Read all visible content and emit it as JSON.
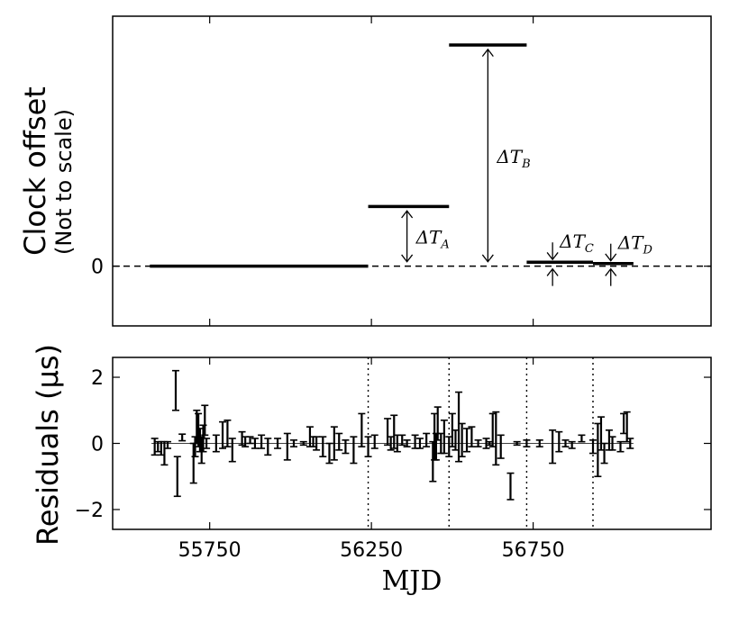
{
  "chart_data": [
    {
      "type": "step",
      "ylabel": "Clock offset",
      "ylabel_sub": "(Not to scale)",
      "ytick": "0",
      "segments": [
        {
          "x0": 55565,
          "x1": 56240,
          "level": 0
        },
        {
          "x0": 56240,
          "x1": 56490,
          "level": 0.27
        },
        {
          "x0": 56490,
          "x1": 56730,
          "level": 1.0
        },
        {
          "x0": 56730,
          "x1": 56935,
          "level": 0.018
        },
        {
          "x0": 56935,
          "x1": 57060,
          "level": 0.012
        }
      ],
      "ylim": [
        -0.27,
        1.13
      ],
      "xlim": [
        55450,
        57300
      ],
      "annotations": [
        {
          "label": "ΔT",
          "subscript": "A",
          "x": 56360,
          "from": 0.02,
          "to": 0.25
        },
        {
          "label": "ΔT",
          "subscript": "B",
          "x": 56610,
          "from": 0.02,
          "to": 0.98
        },
        {
          "label": "ΔT",
          "subscript": "C",
          "x": 56810,
          "from": 0.018,
          "to": 0
        },
        {
          "label": "ΔT",
          "subscript": "D",
          "x": 56990,
          "from": 0.012,
          "to": 0
        }
      ]
    },
    {
      "type": "errorbar",
      "ylabel": "Residuals (μs)",
      "xlabel": "MJD",
      "xticks": [
        55750,
        56250,
        56750
      ],
      "xtick_labels": [
        "55750",
        "56250",
        "56750"
      ],
      "yticks": [
        -2,
        0,
        2
      ],
      "ytick_labels": [
        "−2",
        "0",
        "2"
      ],
      "xlim": [
        55450,
        57300
      ],
      "ylim": [
        -2.6,
        2.6
      ],
      "vlines": [
        56240,
        56490,
        56730,
        56935
      ],
      "points": [
        {
          "x": 55580,
          "y": -0.1,
          "err": 0.25
        },
        {
          "x": 55590,
          "y": -0.1,
          "err": 0.15
        },
        {
          "x": 55600,
          "y": -0.15,
          "err": 0.2
        },
        {
          "x": 55610,
          "y": -0.3,
          "err": 0.35
        },
        {
          "x": 55620,
          "y": -0.05,
          "err": 0.1
        },
        {
          "x": 55645,
          "y": 1.6,
          "err": 0.6
        },
        {
          "x": 55650,
          "y": -1.0,
          "err": 0.6
        },
        {
          "x": 55665,
          "y": 0.18,
          "err": 0.1
        },
        {
          "x": 55700,
          "y": -0.6,
          "err": 0.6
        },
        {
          "x": 55705,
          "y": -0.1,
          "err": 0.3
        },
        {
          "x": 55710,
          "y": 0.5,
          "err": 0.5
        },
        {
          "x": 55715,
          "y": 0.4,
          "err": 0.5
        },
        {
          "x": 55720,
          "y": 0.1,
          "err": 0.35
        },
        {
          "x": 55725,
          "y": -0.2,
          "err": 0.4
        },
        {
          "x": 55730,
          "y": 0.15,
          "err": 0.4
        },
        {
          "x": 55735,
          "y": 0.7,
          "err": 0.45
        },
        {
          "x": 55740,
          "y": 0.0,
          "err": 0.15
        },
        {
          "x": 55770,
          "y": 0.0,
          "err": 0.25
        },
        {
          "x": 55790,
          "y": 0.25,
          "err": 0.4
        },
        {
          "x": 55805,
          "y": 0.3,
          "err": 0.4
        },
        {
          "x": 55820,
          "y": -0.2,
          "err": 0.35
        },
        {
          "x": 55850,
          "y": 0.15,
          "err": 0.2
        },
        {
          "x": 55860,
          "y": 0.05,
          "err": 0.15
        },
        {
          "x": 55875,
          "y": 0.1,
          "err": 0.1
        },
        {
          "x": 55890,
          "y": 0.0,
          "err": 0.15
        },
        {
          "x": 55910,
          "y": 0.05,
          "err": 0.2
        },
        {
          "x": 55930,
          "y": -0.1,
          "err": 0.25
        },
        {
          "x": 55960,
          "y": 0.0,
          "err": 0.15
        },
        {
          "x": 55990,
          "y": -0.1,
          "err": 0.4
        },
        {
          "x": 56010,
          "y": 0.0,
          "err": 0.1
        },
        {
          "x": 56040,
          "y": 0.0,
          "err": 0.05
        },
        {
          "x": 56060,
          "y": 0.2,
          "err": 0.3
        },
        {
          "x": 56070,
          "y": 0.05,
          "err": 0.15
        },
        {
          "x": 56080,
          "y": 0.0,
          "err": 0.2
        },
        {
          "x": 56100,
          "y": -0.1,
          "err": 0.3
        },
        {
          "x": 56120,
          "y": -0.3,
          "err": 0.3
        },
        {
          "x": 56135,
          "y": 0.0,
          "err": 0.5
        },
        {
          "x": 56150,
          "y": 0.05,
          "err": 0.25
        },
        {
          "x": 56170,
          "y": -0.1,
          "err": 0.2
        },
        {
          "x": 56195,
          "y": -0.2,
          "err": 0.4
        },
        {
          "x": 56220,
          "y": 0.4,
          "err": 0.5
        },
        {
          "x": 56240,
          "y": -0.1,
          "err": 0.3
        },
        {
          "x": 56260,
          "y": 0.05,
          "err": 0.2
        },
        {
          "x": 56300,
          "y": 0.35,
          "err": 0.4
        },
        {
          "x": 56310,
          "y": 0.0,
          "err": 0.2
        },
        {
          "x": 56320,
          "y": 0.35,
          "err": 0.5
        },
        {
          "x": 56330,
          "y": 0.0,
          "err": 0.25
        },
        {
          "x": 56345,
          "y": 0.1,
          "err": 0.15
        },
        {
          "x": 56360,
          "y": 0.0,
          "err": 0.1
        },
        {
          "x": 56385,
          "y": 0.05,
          "err": 0.2
        },
        {
          "x": 56400,
          "y": 0.0,
          "err": 0.15
        },
        {
          "x": 56420,
          "y": 0.1,
          "err": 0.2
        },
        {
          "x": 56440,
          "y": -0.55,
          "err": 0.6
        },
        {
          "x": 56445,
          "y": 0.2,
          "err": 0.7
        },
        {
          "x": 56450,
          "y": -0.1,
          "err": 0.4
        },
        {
          "x": 56455,
          "y": 0.6,
          "err": 0.5
        },
        {
          "x": 56465,
          "y": 0.0,
          "err": 0.3
        },
        {
          "x": 56475,
          "y": 0.2,
          "err": 0.5
        },
        {
          "x": 56490,
          "y": -0.1,
          "err": 0.3
        },
        {
          "x": 56500,
          "y": 0.4,
          "err": 0.5
        },
        {
          "x": 56510,
          "y": 0.1,
          "err": 0.3
        },
        {
          "x": 56520,
          "y": 0.5,
          "err": 1.05
        },
        {
          "x": 56530,
          "y": 0.1,
          "err": 0.5
        },
        {
          "x": 56545,
          "y": 0.1,
          "err": 0.35
        },
        {
          "x": 56560,
          "y": 0.2,
          "err": 0.3
        },
        {
          "x": 56580,
          "y": 0.0,
          "err": 0.1
        },
        {
          "x": 56605,
          "y": 0.0,
          "err": 0.15
        },
        {
          "x": 56615,
          "y": 0.0,
          "err": 0.05
        },
        {
          "x": 56625,
          "y": 0.4,
          "err": 0.5
        },
        {
          "x": 56635,
          "y": 0.15,
          "err": 0.8
        },
        {
          "x": 56650,
          "y": -0.1,
          "err": 0.35
        },
        {
          "x": 56680,
          "y": -1.3,
          "err": 0.4
        },
        {
          "x": 56700,
          "y": 0.0,
          "err": 0.05
        },
        {
          "x": 56730,
          "y": 0.0,
          "err": 0.1
        },
        {
          "x": 56770,
          "y": 0.0,
          "err": 0.1
        },
        {
          "x": 56810,
          "y": -0.1,
          "err": 0.5
        },
        {
          "x": 56830,
          "y": 0.05,
          "err": 0.3
        },
        {
          "x": 56850,
          "y": 0.0,
          "err": 0.1
        },
        {
          "x": 56870,
          "y": -0.05,
          "err": 0.1
        },
        {
          "x": 56900,
          "y": 0.15,
          "err": 0.1
        },
        {
          "x": 56935,
          "y": -0.1,
          "err": 0.2
        },
        {
          "x": 56950,
          "y": -0.2,
          "err": 0.8
        },
        {
          "x": 56960,
          "y": 0.3,
          "err": 0.5
        },
        {
          "x": 56970,
          "y": -0.3,
          "err": 0.3
        },
        {
          "x": 56985,
          "y": 0.1,
          "err": 0.3
        },
        {
          "x": 56995,
          "y": 0.0,
          "err": 0.2
        },
        {
          "x": 57020,
          "y": -0.1,
          "err": 0.15
        },
        {
          "x": 57030,
          "y": 0.6,
          "err": 0.3
        },
        {
          "x": 57040,
          "y": 0.5,
          "err": 0.45
        },
        {
          "x": 57050,
          "y": 0.0,
          "err": 0.15
        }
      ]
    }
  ]
}
